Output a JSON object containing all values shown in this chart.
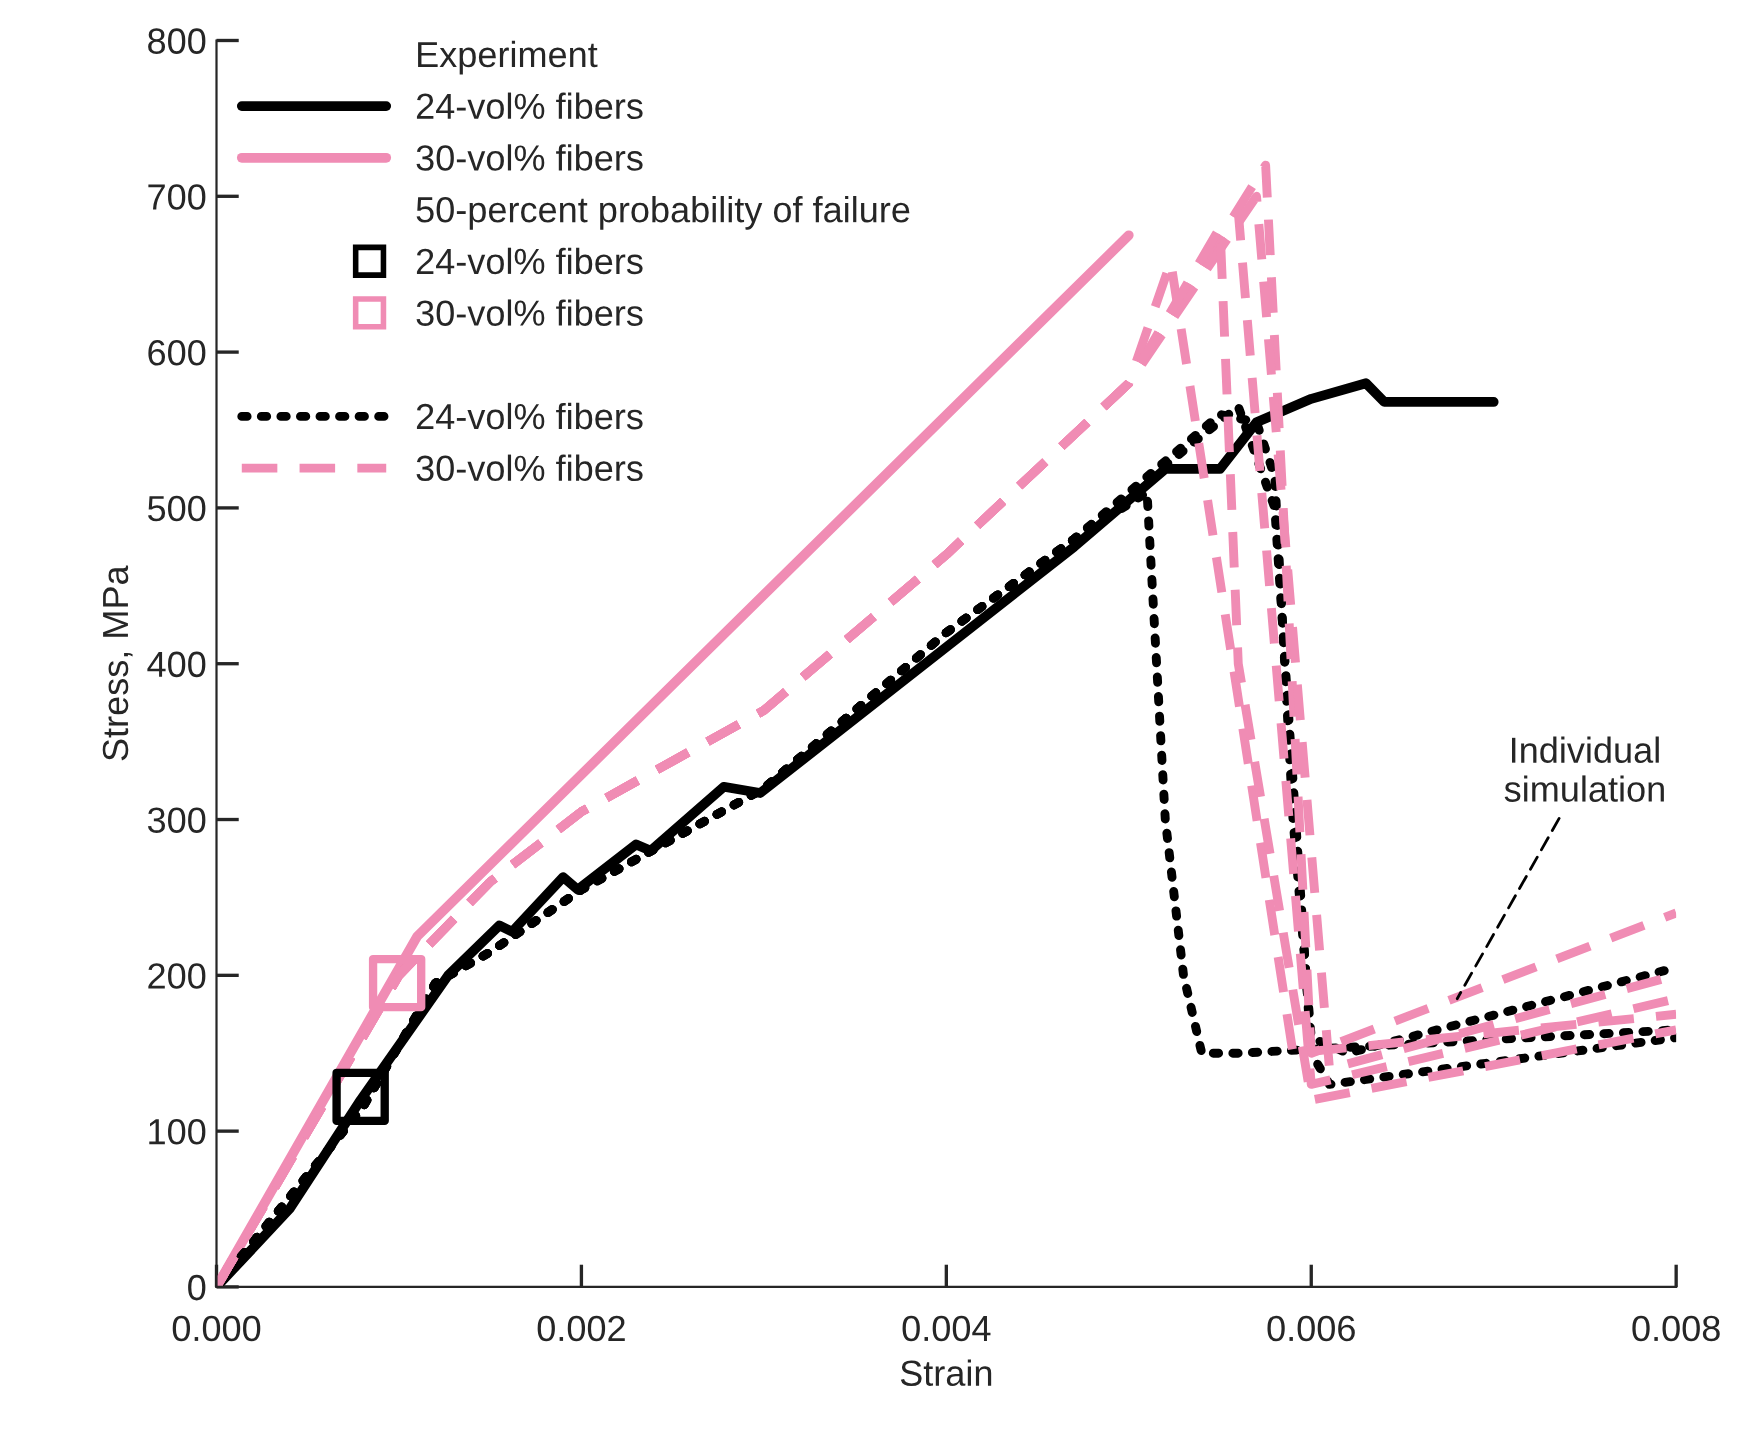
{
  "chart_data": {
    "type": "line",
    "xlabel": "Strain",
    "ylabel": "Stress, MPa",
    "xlim": [
      0,
      0.008
    ],
    "ylim": [
      0,
      800
    ],
    "xticks": [
      {
        "value": 0,
        "label": "0.000"
      },
      {
        "value": 0.002,
        "label": "0.002"
      },
      {
        "value": 0.004,
        "label": "0.004"
      },
      {
        "value": 0.006,
        "label": "0.006"
      },
      {
        "value": 0.008,
        "label": "0.008"
      }
    ],
    "yticks": [
      0,
      100,
      200,
      300,
      400,
      500,
      600,
      700,
      800
    ],
    "grid": false,
    "legend": "top left",
    "annotations": [
      "Experiment",
      "50-percent probability of failure",
      {
        "text": "Individual\nsimulation",
        "x": 0.0068,
        "y": 185
      }
    ],
    "series": [
      {
        "name": "24-vol% fibers",
        "color": "#000000",
        "line_style": "solid",
        "x": [
          0,
          0.0004,
          0.00079,
          0.00127,
          0.00155,
          0.00162,
          0.0019,
          0.00198,
          0.0023,
          0.00238,
          0.00278,
          0.00298,
          0.0047,
          0.0052,
          0.0055,
          0.0057,
          0.006,
          0.0063,
          0.0064,
          0.007
        ],
        "values": [
          0,
          50,
          120,
          200,
          232,
          228,
          263,
          255,
          284,
          280,
          321,
          317,
          475,
          525,
          525,
          555,
          570,
          580,
          568,
          568
        ]
      },
      {
        "name": "30-vol% fibers",
        "color": "#f08cb4",
        "line_style": "solid",
        "x": [
          0,
          0.0011,
          0.005
        ],
        "values": [
          0,
          225,
          675
        ]
      },
      {
        "name": "24-vol% fibers",
        "type": "scatter",
        "marker": "square",
        "color": "#000000",
        "x": [
          0.00079
        ],
        "values": [
          122
        ]
      },
      {
        "name": "30-vol% fibers",
        "type": "scatter",
        "marker": "square",
        "color": "#f08cb4",
        "x": [
          0.00099
        ],
        "values": [
          195
        ]
      },
      {
        "name": "24-vol% fibers",
        "color": "#000000",
        "line_style": "dotted",
        "x": [
          0,
          0.0008,
          0.0012,
          0.0015,
          0.002,
          0.003,
          0.004,
          0.0047,
          0.0051,
          0.0052,
          0.0053,
          0.0054,
          0.0056,
          0.008
        ],
        "values": [
          0,
          115,
          195,
          215,
          255,
          320,
          420,
          480,
          510,
          300,
          200,
          150,
          150,
          165
        ]
      },
      {
        "color": "#000000",
        "line_style": "dotted",
        "x": [
          0,
          0.0008,
          0.0012,
          0.0015,
          0.002,
          0.003,
          0.004,
          0.0047,
          0.0055,
          0.0057,
          0.0058,
          0.0059,
          0.006,
          0.0062,
          0.008
        ],
        "values": [
          0,
          115,
          195,
          215,
          255,
          320,
          420,
          480,
          560,
          555,
          520,
          300,
          160,
          150,
          205
        ]
      },
      {
        "color": "#000000",
        "line_style": "dotted",
        "x": [
          0,
          0.0008,
          0.0012,
          0.0015,
          0.002,
          0.003,
          0.004,
          0.0047,
          0.0056,
          0.0058,
          0.006,
          0.0061,
          0.008
        ],
        "values": [
          0,
          115,
          195,
          215,
          255,
          320,
          420,
          480,
          565,
          500,
          150,
          130,
          160
        ]
      },
      {
        "name": "30-vol% fibers",
        "color": "#f08cb4",
        "line_style": "dashed",
        "x": [
          0,
          0.001,
          0.0015,
          0.002,
          0.003,
          0.004,
          0.005,
          0.00523,
          0.0059,
          0.008
        ],
        "values": [
          0,
          200,
          260,
          305,
          370,
          470,
          580,
          658,
          150,
          175
        ]
      },
      {
        "color": "#f08cb4",
        "line_style": "dashed",
        "x": [
          0,
          0.001,
          0.0015,
          0.002,
          0.003,
          0.004,
          0.005,
          0.0056,
          0.006,
          0.008
        ],
        "values": [
          0,
          200,
          260,
          305,
          370,
          470,
          580,
          690,
          130,
          185
        ]
      },
      {
        "color": "#f08cb4",
        "line_style": "dashed",
        "x": [
          0,
          0.001,
          0.0015,
          0.002,
          0.003,
          0.004,
          0.005,
          0.00575,
          0.006,
          0.008
        ],
        "values": [
          0,
          200,
          260,
          305,
          370,
          470,
          580,
          720,
          150,
          240
        ]
      },
      {
        "color": "#f08cb4",
        "line_style": "dashed",
        "x": [
          0,
          0.001,
          0.0015,
          0.002,
          0.003,
          0.004,
          0.005,
          0.0057,
          0.0061,
          0.008
        ],
        "values": [
          0,
          200,
          260,
          305,
          370,
          470,
          580,
          700,
          140,
          200
        ]
      },
      {
        "color": "#f08cb4",
        "line_style": "dashed",
        "x": [
          0,
          0.001,
          0.0015,
          0.002,
          0.003,
          0.004,
          0.005,
          0.0055,
          0.0056,
          0.006,
          0.008
        ],
        "values": [
          0,
          200,
          260,
          305,
          370,
          470,
          580,
          680,
          400,
          120,
          165
        ]
      }
    ]
  }
}
